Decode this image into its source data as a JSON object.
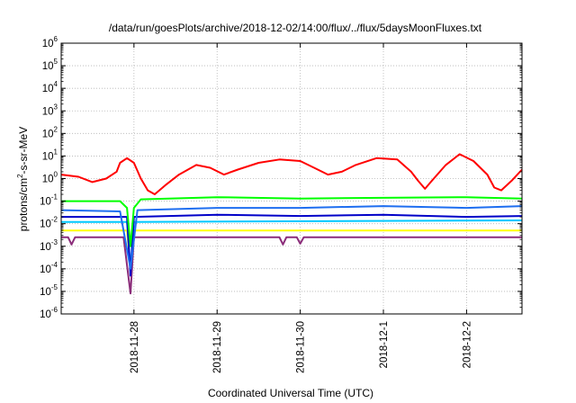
{
  "chart_data": {
    "type": "line",
    "title": "/data/run/goesPlots/archive/2018-12-02/14:00/flux/../flux/5daysMoonFluxes.txt",
    "xlabel": "Coordinated Universal Time (UTC)",
    "ylabel": "protons/cm²-s-sr-MeV",
    "ylabel_base": "protons/cm",
    "ylabel_sup": "2",
    "ylabel_rest": "-s-sr-MeV",
    "y_scale": "log",
    "ylim": [
      1e-06,
      1000000.0
    ],
    "xlim": [
      "2018-11-27T03:00",
      "2018-12-02T16:00"
    ],
    "y_ticks": [
      {
        "base": "10",
        "exp": "-6",
        "value": 1e-06
      },
      {
        "base": "10",
        "exp": "-5",
        "value": 1e-05
      },
      {
        "base": "10",
        "exp": "-4",
        "value": 0.0001
      },
      {
        "base": "10",
        "exp": "-3",
        "value": 0.001
      },
      {
        "base": "10",
        "exp": "-2",
        "value": 0.01
      },
      {
        "base": "10",
        "exp": "-1",
        "value": 0.1
      },
      {
        "base": "10",
        "exp": "0",
        "value": 1
      },
      {
        "base": "10",
        "exp": "1",
        "value": 10
      },
      {
        "base": "10",
        "exp": "2",
        "value": 100
      },
      {
        "base": "10",
        "exp": "3",
        "value": 1000
      },
      {
        "base": "10",
        "exp": "4",
        "value": 10000
      },
      {
        "base": "10",
        "exp": "5",
        "value": 100000
      },
      {
        "base": "10",
        "exp": "6",
        "value": 1000000
      }
    ],
    "x_ticks": [
      "2018-11-28",
      "2018-11-29",
      "2018-11-30",
      "2018-12-1",
      "2018-12-2"
    ],
    "grid": true,
    "legend": "none",
    "series": [
      {
        "color": "#ff0000",
        "points": [
          [
            "2018-11-27T03:00",
            1.5
          ],
          [
            "2018-11-27T08:00",
            1.2
          ],
          [
            "2018-11-27T12:00",
            0.7
          ],
          [
            "2018-11-27T16:00",
            1.0
          ],
          [
            "2018-11-27T19:00",
            2.0
          ],
          [
            "2018-11-27T20:00",
            5.0
          ],
          [
            "2018-11-27T22:00",
            8.0
          ],
          [
            "2018-11-28T00:00",
            5.0
          ],
          [
            "2018-11-28T02:00",
            1.0
          ],
          [
            "2018-11-28T04:00",
            0.3
          ],
          [
            "2018-11-28T06:00",
            0.2
          ],
          [
            "2018-11-28T09:00",
            0.5
          ],
          [
            "2018-11-28T13:00",
            1.5
          ],
          [
            "2018-11-28T18:00",
            4.0
          ],
          [
            "2018-11-28T22:00",
            3.0
          ],
          [
            "2018-11-29T02:00",
            1.5
          ],
          [
            "2018-11-29T06:00",
            2.5
          ],
          [
            "2018-11-29T12:00",
            5.0
          ],
          [
            "2018-11-29T18:00",
            7.0
          ],
          [
            "2018-11-30T00:00",
            6.0
          ],
          [
            "2018-11-30T04:00",
            3.0
          ],
          [
            "2018-11-30T08:00",
            1.5
          ],
          [
            "2018-11-30T12:00",
            2.0
          ],
          [
            "2018-11-30T16:00",
            4.0
          ],
          [
            "2018-11-30T22:00",
            8.0
          ],
          [
            "2018-12-01T04:00",
            7.0
          ],
          [
            "2018-12-01T08:00",
            2.0
          ],
          [
            "2018-12-01T10:00",
            0.8
          ],
          [
            "2018-12-01T12:00",
            0.35
          ],
          [
            "2018-12-01T14:00",
            0.8
          ],
          [
            "2018-12-01T18:00",
            4.0
          ],
          [
            "2018-12-01T22:00",
            12.0
          ],
          [
            "2018-12-02T02:00",
            6.0
          ],
          [
            "2018-12-02T06:00",
            1.5
          ],
          [
            "2018-12-02T08:00",
            0.4
          ],
          [
            "2018-12-02T10:00",
            0.3
          ],
          [
            "2018-12-02T13:00",
            0.8
          ],
          [
            "2018-12-02T16:00",
            2.5
          ]
        ]
      },
      {
        "color": "#00ff00",
        "points": [
          [
            "2018-11-27T03:00",
            0.1
          ],
          [
            "2018-11-27T20:00",
            0.1
          ],
          [
            "2018-11-27T22:00",
            0.05
          ],
          [
            "2018-11-27T23:00",
            0.001
          ],
          [
            "2018-11-28T00:00",
            0.05
          ],
          [
            "2018-11-28T02:00",
            0.12
          ],
          [
            "2018-11-29T00:00",
            0.15
          ],
          [
            "2018-11-30T00:00",
            0.13
          ],
          [
            "2018-12-01T00:00",
            0.14
          ],
          [
            "2018-12-02T00:00",
            0.15
          ],
          [
            "2018-12-02T16:00",
            0.13
          ]
        ]
      },
      {
        "color": "#00c8ff",
        "points": [
          [
            "2018-11-27T03:00",
            0.012
          ],
          [
            "2018-11-27T22:00",
            0.012
          ],
          [
            "2018-11-27T23:00",
            0.0001
          ],
          [
            "2018-11-28T00:00",
            0.012
          ],
          [
            "2018-12-02T16:00",
            0.014
          ]
        ]
      },
      {
        "color": "#1e6ef0",
        "points": [
          [
            "2018-11-27T03:00",
            0.04
          ],
          [
            "2018-11-27T20:00",
            0.035
          ],
          [
            "2018-11-27T23:00",
            0.0001
          ],
          [
            "2018-11-28T01:00",
            0.04
          ],
          [
            "2018-11-29T00:00",
            0.05
          ],
          [
            "2018-11-30T00:00",
            0.05
          ],
          [
            "2018-12-01T00:00",
            0.06
          ],
          [
            "2018-12-02T00:00",
            0.05
          ],
          [
            "2018-12-02T16:00",
            0.06
          ]
        ]
      },
      {
        "color": "#0000c8",
        "points": [
          [
            "2018-11-27T03:00",
            0.02
          ],
          [
            "2018-11-27T22:00",
            0.02
          ],
          [
            "2018-11-27T23:00",
            5e-05
          ],
          [
            "2018-11-28T00:00",
            0.02
          ],
          [
            "2018-11-29T00:00",
            0.025
          ],
          [
            "2018-11-30T00:00",
            0.022
          ],
          [
            "2018-12-01T00:00",
            0.025
          ],
          [
            "2018-12-02T00:00",
            0.02
          ],
          [
            "2018-12-02T16:00",
            0.022
          ]
        ]
      },
      {
        "color": "#ffff00",
        "points": [
          [
            "2018-11-27T03:00",
            0.005
          ],
          [
            "2018-11-27T22:00",
            0.005
          ],
          [
            "2018-11-27T23:00",
            0.0001
          ],
          [
            "2018-11-28T00:00",
            0.005
          ],
          [
            "2018-12-02T16:00",
            0.005
          ]
        ]
      },
      {
        "color": "#8b2d7a",
        "points": [
          [
            "2018-11-27T03:00",
            0.0025
          ],
          [
            "2018-11-27T05:00",
            0.0025
          ],
          [
            "2018-11-27T06:00",
            0.0012
          ],
          [
            "2018-11-27T07:00",
            0.0025
          ],
          [
            "2018-11-27T21:00",
            0.0025
          ],
          [
            "2018-11-27T23:00",
            8e-06
          ],
          [
            "2018-11-28T00:00",
            0.0025
          ],
          [
            "2018-11-29T18:00",
            0.0025
          ],
          [
            "2018-11-29T19:00",
            0.0012
          ],
          [
            "2018-11-29T20:00",
            0.0025
          ],
          [
            "2018-11-29T23:00",
            0.0025
          ],
          [
            "2018-11-30T00:00",
            0.0013
          ],
          [
            "2018-11-30T01:00",
            0.0025
          ],
          [
            "2018-12-02T16:00",
            0.0025
          ]
        ]
      }
    ]
  }
}
